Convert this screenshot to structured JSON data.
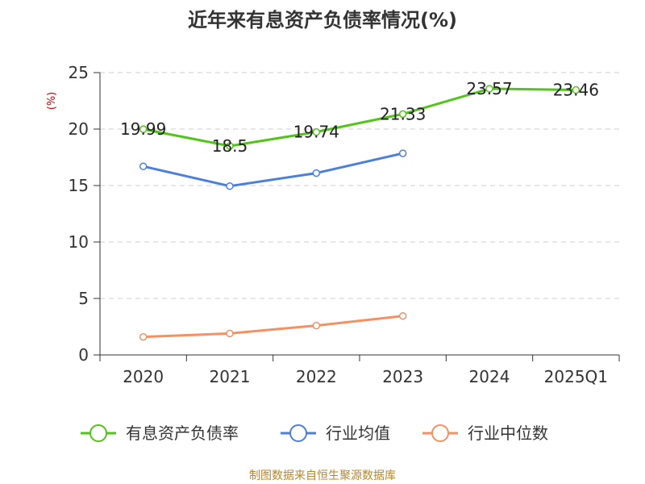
{
  "title": "近年来有息资产负债率情况(%)",
  "source": "制图数据来自恒生聚源数据库",
  "chart_data": {
    "type": "line",
    "title": "近年来有息资产负债率情况(%)",
    "ylabel": "(%)",
    "xlabel": "",
    "categories": [
      "2020",
      "2021",
      "2022",
      "2023",
      "2024",
      "2025Q1"
    ],
    "ylim": [
      0,
      25
    ],
    "yticks": [
      0,
      5,
      10,
      15,
      20,
      25
    ],
    "grid": true,
    "legend_position": "bottom",
    "series": [
      {
        "name": "有息资产负债率",
        "color": "#52c41a",
        "values": [
          19.99,
          18.5,
          19.74,
          21.33,
          23.57,
          23.46
        ],
        "data_labels": [
          "19.99",
          "18.5",
          "19.74",
          "21.33",
          "23.57",
          "23.46"
        ]
      },
      {
        "name": "行业均值",
        "color": "#4a7fdc",
        "values": [
          16.7,
          14.95,
          16.1,
          17.85,
          null,
          null
        ]
      },
      {
        "name": "行业中位数",
        "color": "#f59062",
        "values": [
          1.6,
          1.9,
          2.6,
          3.45,
          null,
          null
        ]
      }
    ]
  }
}
